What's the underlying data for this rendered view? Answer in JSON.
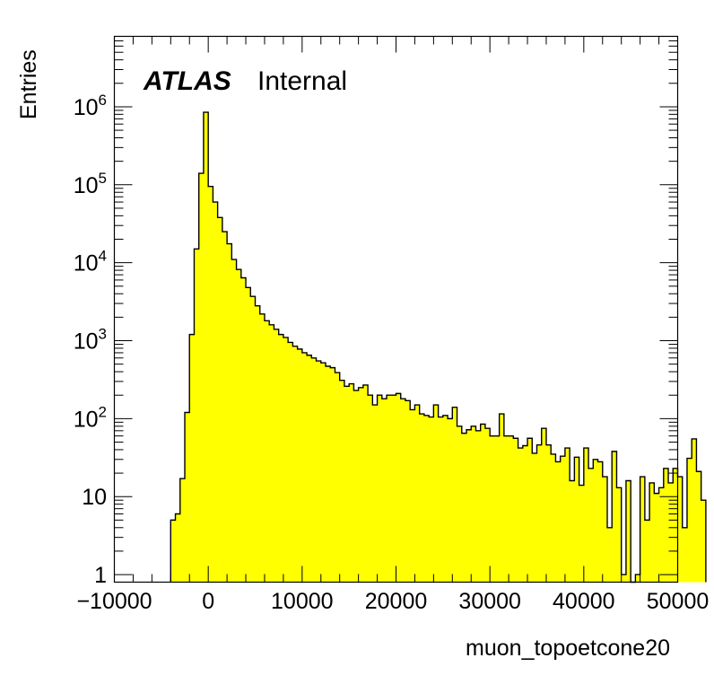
{
  "chart_data": {
    "type": "bar",
    "subtype": "histogram",
    "title": "",
    "xlabel": "muon_topoetcone20",
    "ylabel": "Entries",
    "xlim": [
      -10000,
      50000
    ],
    "ylim": [
      0.8,
      8000000
    ],
    "y_scale": "log",
    "grid": false,
    "legend": "none",
    "fill_color": "#ffff00",
    "line_color": "#000000",
    "label": {
      "atlas": "ATLAS",
      "status": "Internal"
    },
    "x_ticks": [
      "−10000",
      "0",
      "10000",
      "20000",
      "30000",
      "40000",
      "50000"
    ],
    "y_ticks": [
      {
        "value": 1,
        "base": "1",
        "exp": ""
      },
      {
        "value": 10,
        "base": "10",
        "exp": ""
      },
      {
        "value": 100,
        "base": "10",
        "exp": "2"
      },
      {
        "value": 1000,
        "base": "10",
        "exp": "3"
      },
      {
        "value": 10000,
        "base": "10",
        "exp": "4"
      },
      {
        "value": 100000,
        "base": "10",
        "exp": "5"
      },
      {
        "value": 1000000,
        "base": "10",
        "exp": "6"
      }
    ],
    "bin_width": 500,
    "bins_start": -4000,
    "values": [
      5,
      6,
      17,
      120,
      1200,
      15000,
      140000,
      850000,
      95000,
      60000,
      38000,
      25000,
      17500,
      11000,
      8200,
      6400,
      4800,
      3700,
      2800,
      2200,
      1800,
      1600,
      1400,
      1200,
      1100,
      950,
      850,
      780,
      700,
      650,
      600,
      550,
      520,
      470,
      450,
      390,
      310,
      260,
      280,
      230,
      250,
      270,
      200,
      150,
      200,
      180,
      200,
      200,
      210,
      180,
      170,
      130,
      150,
      115,
      110,
      105,
      150,
      105,
      110,
      100,
      140,
      80,
      65,
      72,
      80,
      70,
      85,
      75,
      60,
      60,
      115,
      60,
      60,
      56,
      42,
      45,
      56,
      36,
      46,
      75,
      46,
      35,
      28,
      33,
      42,
      16,
      32,
      14,
      42,
      23,
      30,
      28,
      18,
      4,
      38,
      13,
      1,
      16,
      0,
      1,
      18,
      5,
      15,
      11,
      13,
      23,
      15,
      23,
      18,
      4,
      31,
      55,
      21,
      9
    ]
  }
}
